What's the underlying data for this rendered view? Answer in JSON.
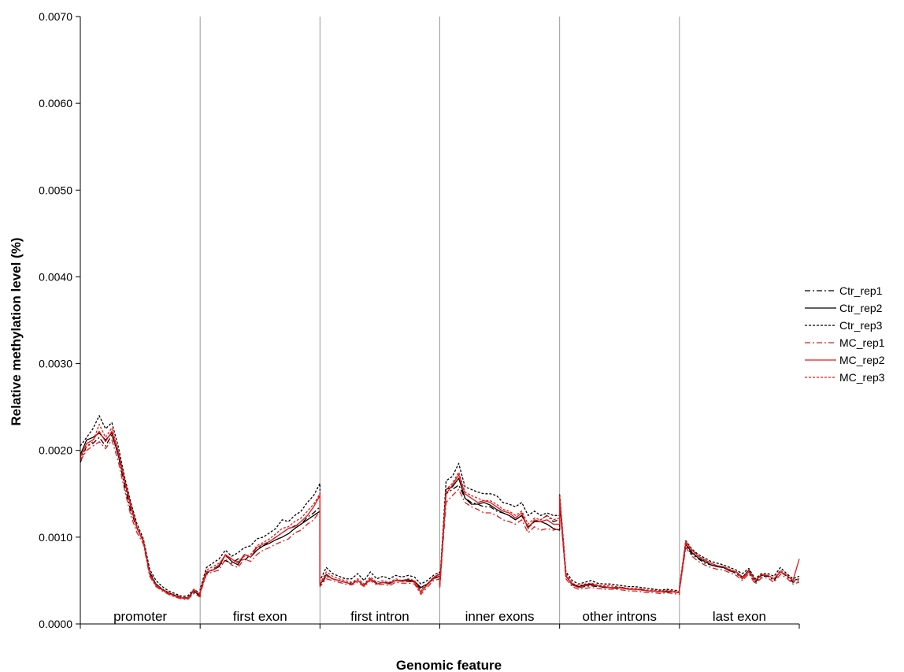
{
  "chart_data": {
    "type": "line",
    "title": "",
    "xlabel": "Genomic feature",
    "ylabel": "Relative methylation level (%)",
    "ylim": [
      0,
      0.007
    ],
    "yticks": [
      "0.0000",
      "0.0010",
      "0.0020",
      "0.0030",
      "0.0040",
      "0.0050",
      "0.0060",
      "0.0070"
    ],
    "grid": false,
    "legend_position": "right",
    "points_per_region": 20,
    "categories": [
      "promoter",
      "first exon",
      "first intron",
      "inner exons",
      "other introns",
      "last exon"
    ],
    "series": [
      {
        "name": "Ctr_rep1",
        "color": "#000000",
        "dash": "dashdot",
        "values": [
          [
            0.00186,
            0.00205,
            0.00208,
            0.00215,
            0.00205,
            0.00218,
            0.00195,
            0.0016,
            0.0013,
            0.0011,
            0.00095,
            0.0006,
            0.00046,
            0.0004,
            0.00036,
            0.00033,
            0.00031,
            0.0003,
            0.00036,
            0.00033
          ],
          [
            0.00038,
            0.00058,
            0.00063,
            0.00068,
            0.00073,
            0.0007,
            0.00075,
            0.00073,
            0.0008,
            0.00088,
            0.0009,
            0.00095,
            0.001,
            0.00105,
            0.0011,
            0.00113,
            0.00115,
            0.00123,
            0.00128,
            0.00135
          ],
          [
            0.00044,
            0.00055,
            0.00052,
            0.0005,
            0.00048,
            0.00047,
            0.0005,
            0.00045,
            0.00052,
            0.00047,
            0.00048,
            0.00046,
            0.0005,
            0.00049,
            0.00049,
            0.00048,
            0.0004,
            0.00045,
            0.00052,
            0.00055
          ],
          [
            0.00043,
            0.0015,
            0.00155,
            0.0016,
            0.00145,
            0.0014,
            0.00138,
            0.00135,
            0.00135,
            0.0013,
            0.00128,
            0.00125,
            0.0012,
            0.00125,
            0.0011,
            0.00118,
            0.0012,
            0.00125,
            0.00118,
            0.0012
          ],
          [
            0.0014,
            0.00055,
            0.00045,
            0.00042,
            0.00043,
            0.00044,
            0.00043,
            0.00043,
            0.00042,
            0.00042,
            0.00041,
            0.0004,
            0.0004,
            0.0004,
            0.00038,
            0.00038,
            0.00037,
            0.00038,
            0.00037,
            0.00036
          ],
          [
            0.0004,
            0.0009,
            0.0008,
            0.00075,
            0.0007,
            0.00068,
            0.00066,
            0.00065,
            0.00062,
            0.00058,
            0.00052,
            0.0006,
            0.00048,
            0.00055,
            0.00055,
            0.0005,
            0.0006,
            0.00055,
            0.00048,
            0.0005
          ]
        ]
      },
      {
        "name": "Ctr_rep2",
        "color": "#000000",
        "dash": "solid",
        "values": [
          [
            0.00195,
            0.00212,
            0.00215,
            0.0022,
            0.00212,
            0.0022,
            0.00195,
            0.00165,
            0.00135,
            0.0011,
            0.00095,
            0.00058,
            0.00046,
            0.0004,
            0.00036,
            0.00033,
            0.0003,
            0.0003,
            0.00038,
            0.00032
          ],
          [
            0.00036,
            0.0006,
            0.00062,
            0.00066,
            0.0008,
            0.00072,
            0.00068,
            0.0008,
            0.00077,
            0.00085,
            0.0009,
            0.00093,
            0.00097,
            0.001,
            0.00104,
            0.0011,
            0.00115,
            0.0012,
            0.00125,
            0.0013
          ],
          [
            0.00045,
            0.00057,
            0.00052,
            0.0005,
            0.00048,
            0.00046,
            0.0005,
            0.00044,
            0.00052,
            0.00046,
            0.00048,
            0.00047,
            0.0005,
            0.0005,
            0.00051,
            0.00049,
            0.00042,
            0.00046,
            0.00053,
            0.00058
          ],
          [
            0.00045,
            0.00155,
            0.00158,
            0.00168,
            0.00145,
            0.00138,
            0.00138,
            0.0014,
            0.00137,
            0.00132,
            0.00128,
            0.00125,
            0.0012,
            0.00125,
            0.00112,
            0.00118,
            0.00118,
            0.00115,
            0.0011,
            0.00108
          ],
          [
            0.00145,
            0.00055,
            0.00046,
            0.00043,
            0.00045,
            0.00046,
            0.00044,
            0.00042,
            0.00042,
            0.00041,
            0.00042,
            0.0004,
            0.0004,
            0.00039,
            0.00038,
            0.00038,
            0.00037,
            0.00037,
            0.00037,
            0.00036
          ],
          [
            0.0004,
            0.00092,
            0.00082,
            0.00076,
            0.00072,
            0.00068,
            0.00066,
            0.00065,
            0.00061,
            0.0006,
            0.00054,
            0.00062,
            0.0005,
            0.00056,
            0.00056,
            0.00052,
            0.0006,
            0.00056,
            0.0005,
            0.00052
          ]
        ]
      },
      {
        "name": "Ctr_rep3",
        "color": "#000000",
        "dash": "dotted",
        "values": [
          [
            0.00205,
            0.00215,
            0.00225,
            0.0024,
            0.00225,
            0.00232,
            0.00205,
            0.0017,
            0.0014,
            0.00115,
            0.00098,
            0.00063,
            0.0005,
            0.00043,
            0.00038,
            0.00035,
            0.00032,
            0.00032,
            0.0004,
            0.00035
          ],
          [
            0.0004,
            0.00065,
            0.0007,
            0.00075,
            0.00085,
            0.00078,
            0.00082,
            0.00088,
            0.0009,
            0.00098,
            0.001,
            0.00105,
            0.0011,
            0.0012,
            0.00118,
            0.00125,
            0.0013,
            0.0014,
            0.00148,
            0.00162
          ],
          [
            0.0005,
            0.00065,
            0.00058,
            0.00055,
            0.00052,
            0.00052,
            0.00058,
            0.0005,
            0.0006,
            0.00052,
            0.00055,
            0.00052,
            0.00056,
            0.00054,
            0.00056,
            0.00054,
            0.00046,
            0.0005,
            0.00056,
            0.0006
          ],
          [
            0.00048,
            0.00165,
            0.0017,
            0.00185,
            0.00158,
            0.00155,
            0.00152,
            0.0015,
            0.0015,
            0.00148,
            0.0014,
            0.00138,
            0.00135,
            0.0014,
            0.00125,
            0.0013,
            0.00125,
            0.00128,
            0.00125,
            0.00125
          ],
          [
            0.0015,
            0.0006,
            0.0005,
            0.00046,
            0.00048,
            0.0005,
            0.00047,
            0.00046,
            0.00046,
            0.00045,
            0.00044,
            0.00043,
            0.00043,
            0.00042,
            0.00041,
            0.0004,
            0.00039,
            0.0004,
            0.00039,
            0.00038
          ],
          [
            0.00042,
            0.00096,
            0.00086,
            0.0008,
            0.00076,
            0.00072,
            0.0007,
            0.00068,
            0.00065,
            0.00062,
            0.00058,
            0.00064,
            0.00052,
            0.00058,
            0.00058,
            0.00055,
            0.00065,
            0.00058,
            0.00052,
            0.00055
          ]
        ]
      },
      {
        "name": "MC_rep1",
        "color": "#e41a1c",
        "dash": "dashdot",
        "values": [
          [
            0.00188,
            0.002,
            0.00205,
            0.0021,
            0.00202,
            0.00212,
            0.00188,
            0.00155,
            0.00125,
            0.00105,
            0.00092,
            0.00055,
            0.00043,
            0.00038,
            0.00034,
            0.00031,
            0.00029,
            0.00028,
            0.00035,
            0.00031
          ],
          [
            0.00035,
            0.00057,
            0.0006,
            0.00062,
            0.00075,
            0.00068,
            0.00065,
            0.00075,
            0.00072,
            0.0008,
            0.00085,
            0.00088,
            0.00092,
            0.00095,
            0.00098,
            0.00105,
            0.00108,
            0.00115,
            0.0012,
            0.0013
          ],
          [
            0.00043,
            0.00052,
            0.0005,
            0.00048,
            0.00046,
            0.00045,
            0.00048,
            0.00043,
            0.0005,
            0.00045,
            0.00046,
            0.00044,
            0.00048,
            0.00047,
            0.00047,
            0.00046,
            0.00034,
            0.00042,
            0.0005,
            0.00052
          ],
          [
            0.00042,
            0.0014,
            0.00148,
            0.00155,
            0.0014,
            0.00135,
            0.00132,
            0.00128,
            0.00128,
            0.00125,
            0.0012,
            0.00118,
            0.00115,
            0.0012,
            0.00105,
            0.00112,
            0.00108,
            0.0011,
            0.00108,
            0.0011
          ],
          [
            0.00138,
            0.00052,
            0.00043,
            0.0004,
            0.00041,
            0.00042,
            0.00041,
            0.0004,
            0.0004,
            0.0004,
            0.00039,
            0.00038,
            0.00038,
            0.00037,
            0.00036,
            0.00036,
            0.00035,
            0.00036,
            0.00035,
            0.00034
          ],
          [
            0.00038,
            0.00088,
            0.00078,
            0.00072,
            0.00068,
            0.00065,
            0.00063,
            0.00062,
            0.00059,
            0.00056,
            0.0005,
            0.00058,
            0.00046,
            0.00053,
            0.00053,
            0.00048,
            0.00057,
            0.00053,
            0.00046,
            0.00048
          ]
        ]
      },
      {
        "name": "MC_rep2",
        "color": "#e41a1c",
        "dash": "solid",
        "values": [
          [
            0.00192,
            0.00208,
            0.00212,
            0.00222,
            0.0021,
            0.00222,
            0.00198,
            0.00165,
            0.00135,
            0.0011,
            0.00095,
            0.00057,
            0.00044,
            0.00039,
            0.00035,
            0.00032,
            0.0003,
            0.00029,
            0.0004,
            0.00033
          ],
          [
            0.00036,
            0.0006,
            0.00062,
            0.00068,
            0.0008,
            0.00075,
            0.0007,
            0.0008,
            0.00077,
            0.00088,
            0.00092,
            0.00095,
            0.001,
            0.00105,
            0.0011,
            0.00112,
            0.00118,
            0.00125,
            0.00135,
            0.00148
          ],
          [
            0.00046,
            0.00056,
            0.00052,
            0.0005,
            0.00048,
            0.00046,
            0.0005,
            0.00044,
            0.00052,
            0.00046,
            0.00048,
            0.00046,
            0.0005,
            0.00049,
            0.0005,
            0.00048,
            0.00036,
            0.00045,
            0.00052,
            0.00058
          ],
          [
            0.00044,
            0.0015,
            0.0016,
            0.00172,
            0.0015,
            0.00145,
            0.0014,
            0.00142,
            0.0014,
            0.00135,
            0.0013,
            0.00128,
            0.00122,
            0.00128,
            0.0011,
            0.0012,
            0.00118,
            0.0012,
            0.00115,
            0.00115
          ],
          [
            0.00148,
            0.00056,
            0.00045,
            0.00042,
            0.00044,
            0.00045,
            0.00044,
            0.00043,
            0.00042,
            0.00042,
            0.00041,
            0.0004,
            0.0004,
            0.00039,
            0.00038,
            0.00038,
            0.00037,
            0.00038,
            0.00037,
            0.00036
          ],
          [
            0.0004,
            0.00095,
            0.00085,
            0.00078,
            0.00074,
            0.0007,
            0.00067,
            0.00066,
            0.00062,
            0.0006,
            0.00052,
            0.0006,
            0.0005,
            0.00057,
            0.00056,
            0.00052,
            0.0006,
            0.00056,
            0.0005,
            0.00075
          ]
        ]
      },
      {
        "name": "MC_rep3",
        "color": "#e41a1c",
        "dash": "dotted",
        "values": [
          [
            0.0019,
            0.00205,
            0.0021,
            0.0023,
            0.00215,
            0.00226,
            0.002,
            0.00168,
            0.00138,
            0.00112,
            0.00096,
            0.00058,
            0.00045,
            0.0004,
            0.00036,
            0.00033,
            0.00031,
            0.0003,
            0.00038,
            0.00034
          ],
          [
            0.00038,
            0.00062,
            0.00066,
            0.0007,
            0.00078,
            0.00074,
            0.00072,
            0.00078,
            0.0008,
            0.0009,
            0.00094,
            0.00098,
            0.00104,
            0.0011,
            0.00112,
            0.00118,
            0.00122,
            0.0013,
            0.00138,
            0.0015
          ],
          [
            0.00046,
            0.0006,
            0.00055,
            0.00052,
            0.0005,
            0.00048,
            0.00052,
            0.00046,
            0.00054,
            0.00048,
            0.0005,
            0.00048,
            0.00052,
            0.0005,
            0.00052,
            0.0005,
            0.00038,
            0.00046,
            0.00054,
            0.00058
          ],
          [
            0.00046,
            0.00155,
            0.00162,
            0.00175,
            0.00152,
            0.00148,
            0.00145,
            0.00142,
            0.00142,
            0.00138,
            0.00132,
            0.0013,
            0.00125,
            0.0013,
            0.00115,
            0.00122,
            0.0012,
            0.00125,
            0.0012,
            0.00122
          ],
          [
            0.00145,
            0.00058,
            0.00047,
            0.00044,
            0.00046,
            0.00047,
            0.00045,
            0.00044,
            0.00044,
            0.00043,
            0.00042,
            0.00041,
            0.00041,
            0.0004,
            0.00039,
            0.00039,
            0.00038,
            0.00039,
            0.00038,
            0.00037
          ],
          [
            0.00041,
            0.00093,
            0.00084,
            0.00078,
            0.00073,
            0.0007,
            0.00067,
            0.00066,
            0.00063,
            0.0006,
            0.00054,
            0.00062,
            0.0005,
            0.00056,
            0.00056,
            0.00052,
            0.00062,
            0.00056,
            0.0005,
            0.00052
          ]
        ]
      }
    ]
  }
}
